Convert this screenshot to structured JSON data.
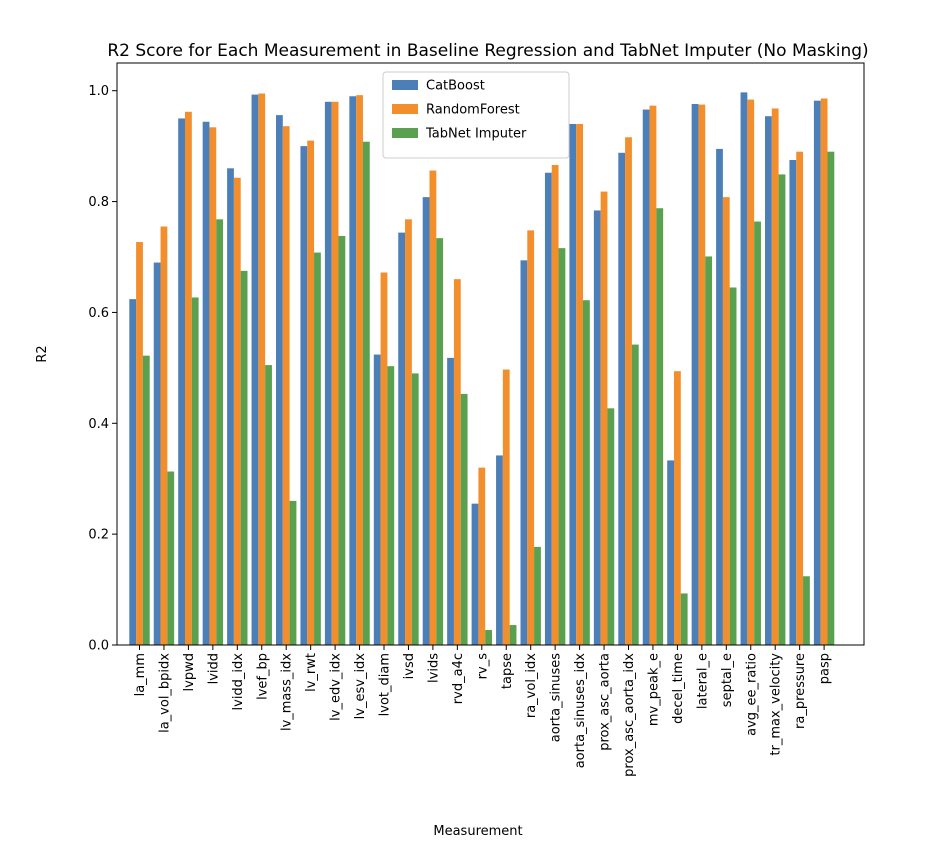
{
  "chart_data": {
    "type": "bar",
    "title": "R2 Score for Each Measurement in Baseline Regression and TabNet Imputer (No Masking)",
    "xlabel": "Measurement",
    "ylabel": "R2",
    "ylim": [
      0,
      1.05
    ],
    "yticks": [
      "0.0",
      "0.2",
      "0.4",
      "0.6",
      "0.8",
      "1.0"
    ],
    "grid": false,
    "legend_position": "top-center",
    "categories": [
      "la_mm",
      "la_vol_bpidx",
      "lvpwd",
      "lvidd",
      "lvidd_idx",
      "lvef_bp",
      "lv_mass_idx",
      "lv_rwt",
      "lv_edv_idx",
      "lv_esv_idx",
      "lvot_diam",
      "ivsd",
      "lvids",
      "rvd_a4c",
      "rv_s",
      "tapse",
      "ra_vol_idx",
      "aorta_sinuses",
      "aorta_sinuses_idx",
      "prox_asc_aorta",
      "prox_asc_aorta_idx",
      "mv_peak_e",
      "decel_time",
      "lateral_e",
      "septal_e",
      "avg_ee_ratio",
      "tr_max_velocity",
      "ra_pressure",
      "pasp"
    ],
    "series": [
      {
        "name": "CatBoost",
        "color": "#4c7fb8",
        "values": [
          0.624,
          0.69,
          0.95,
          0.944,
          0.86,
          0.993,
          0.956,
          0.9,
          0.98,
          0.99,
          0.524,
          0.744,
          0.808,
          0.518,
          0.255,
          0.342,
          0.694,
          0.852,
          0.94,
          0.784,
          0.888,
          0.966,
          0.333,
          0.976,
          0.895,
          0.997,
          0.954,
          0.875,
          0.982
        ]
      },
      {
        "name": "RandomForest",
        "color": "#f28e2b",
        "values": [
          0.727,
          0.755,
          0.962,
          0.934,
          0.843,
          0.995,
          0.936,
          0.91,
          0.98,
          0.992,
          0.672,
          0.768,
          0.856,
          0.66,
          0.32,
          0.497,
          0.748,
          0.866,
          0.94,
          0.818,
          0.916,
          0.973,
          0.494,
          0.975,
          0.808,
          0.984,
          0.968,
          0.89,
          0.986
        ]
      },
      {
        "name": "TabNet Imputer",
        "color": "#59a14f",
        "values": [
          0.522,
          0.313,
          0.627,
          0.768,
          0.675,
          0.505,
          0.26,
          0.708,
          0.738,
          0.908,
          0.503,
          0.49,
          0.734,
          0.453,
          0.027,
          0.036,
          0.177,
          0.716,
          0.622,
          0.427,
          0.542,
          0.788,
          0.093,
          0.701,
          0.645,
          0.764,
          0.849,
          0.124,
          0.89
        ]
      }
    ]
  }
}
